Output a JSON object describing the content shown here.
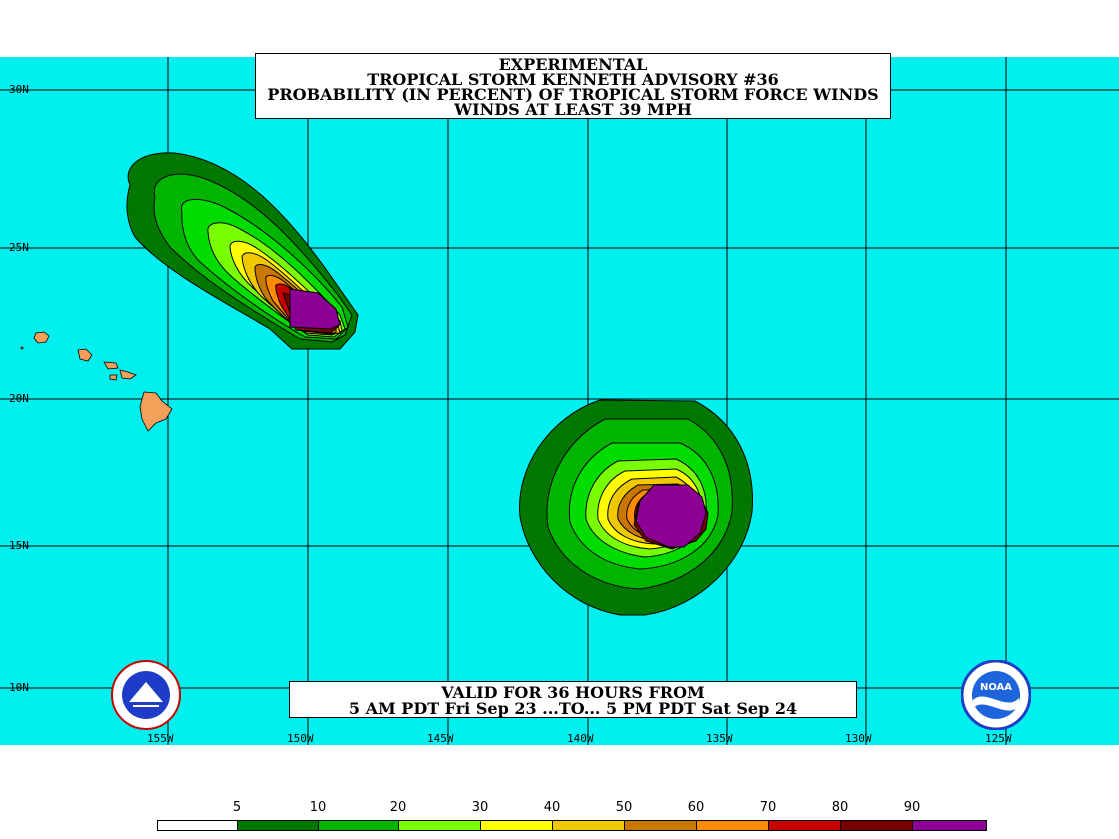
{
  "title": {
    "line1": "EXPERIMENTAL",
    "line2": "TROPICAL STORM KENNETH ADVISORY #36",
    "line3": "PROBABILITY (IN PERCENT) OF TROPICAL STORM FORCE WINDS",
    "line4": "WINDS AT LEAST 39 MPH"
  },
  "valid": {
    "line1": "VALID FOR 36 HOURS FROM",
    "line2": "5 AM PDT Fri Sep 23 ...TO... 5 PM PDT Sat Sep 24"
  },
  "lat_labels": [
    "30N",
    "25N",
    "20N",
    "15N",
    "10N"
  ],
  "lon_labels": [
    "155W",
    "150W",
    "145W",
    "140W",
    "135W",
    "130W",
    "125W"
  ],
  "legend": {
    "labels": [
      "5",
      "10",
      "20",
      "30",
      "40",
      "50",
      "60",
      "70",
      "80",
      "90"
    ],
    "colors": [
      "#ffffff",
      "#007800",
      "#00b400",
      "#00dc00",
      "#78ff00",
      "#ffff00",
      "#f0c800",
      "#c87800",
      "#ff8c00",
      "#c80000",
      "#780000",
      "#8c0096"
    ]
  },
  "colors": {
    "ocean": "#00f0f0",
    "land": "#f5a05a",
    "grid": "#000000"
  },
  "icons": {
    "left_logo": "nws-logo",
    "right_logo": "noaa-logo"
  }
}
